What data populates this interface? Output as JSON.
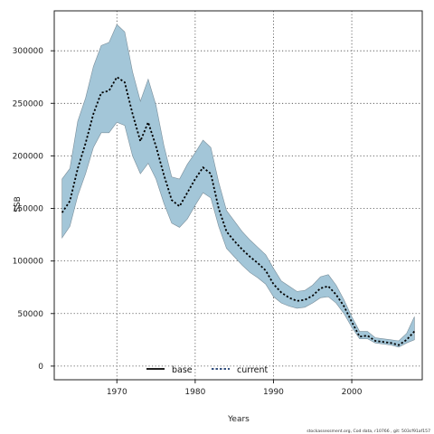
{
  "chart_data": {
    "type": "area",
    "xlabel": "Years",
    "ylabel": "SSB",
    "xlim": [
      1962,
      2009
    ],
    "ylim": [
      -13000,
      338000
    ],
    "x_ticks": [
      1970,
      1980,
      1990,
      2000
    ],
    "y_ticks": [
      0,
      50000,
      100000,
      150000,
      200000,
      250000,
      300000
    ],
    "grid": true,
    "legend_position": "bottom",
    "legend": [
      {
        "name": "base",
        "style": "solid",
        "color": "#000000"
      },
      {
        "name": "current",
        "style": "dotted",
        "color": "#1a3a6e"
      }
    ],
    "colors": {
      "band": "#a3c6d8",
      "band_edge": "#7a8e9a",
      "grid": "#444444"
    },
    "x": [
      1963,
      1964,
      1965,
      1966,
      1967,
      1968,
      1969,
      1970,
      1971,
      1972,
      1973,
      1974,
      1975,
      1976,
      1977,
      1978,
      1979,
      1980,
      1981,
      1982,
      1983,
      1984,
      1985,
      1986,
      1987,
      1988,
      1989,
      1990,
      1991,
      1992,
      1993,
      1994,
      1995,
      1996,
      1997,
      1998,
      1999,
      2000,
      2001,
      2002,
      2003,
      2004,
      2005,
      2006,
      2007,
      2008
    ],
    "band_upper": [
      178000,
      188000,
      233000,
      255000,
      285000,
      305000,
      308000,
      325000,
      318000,
      280000,
      252000,
      273000,
      248000,
      210000,
      180000,
      178000,
      192000,
      203000,
      215000,
      208000,
      175000,
      148000,
      138000,
      128000,
      120000,
      113000,
      106000,
      93000,
      81000,
      76000,
      71000,
      72000,
      77000,
      85000,
      87000,
      77000,
      63000,
      47000,
      33000,
      33000,
      27000,
      26000,
      25000,
      24000,
      31000,
      47000
    ],
    "band_lower": [
      122000,
      133000,
      162000,
      183000,
      208000,
      222000,
      222000,
      232000,
      229000,
      200000,
      183000,
      193000,
      178000,
      155000,
      136000,
      132000,
      140000,
      153000,
      165000,
      160000,
      133000,
      112000,
      104000,
      96000,
      89000,
      84000,
      78000,
      66000,
      60000,
      57000,
      55000,
      56000,
      60000,
      65000,
      66000,
      60000,
      50000,
      37000,
      26000,
      26000,
      22000,
      21000,
      20000,
      18000,
      22000,
      25000
    ],
    "series": [
      {
        "name": "current",
        "values": [
          146000,
          157000,
          188000,
          212000,
          240000,
          260000,
          262000,
          275000,
          270000,
          240000,
          214000,
          232000,
          209000,
          182000,
          158000,
          152000,
          165000,
          178000,
          189000,
          183000,
          150000,
          128000,
          119000,
          111000,
          104000,
          98000,
          91000,
          78000,
          70000,
          65000,
          62000,
          63000,
          67000,
          74000,
          76000,
          68000,
          57000,
          42000,
          28000,
          29000,
          24000,
          23000,
          22000,
          20000,
          25000,
          33000
        ]
      }
    ],
    "footer": "stockassessment.org, Cod data, r10766 , git: 503cf91af157"
  }
}
